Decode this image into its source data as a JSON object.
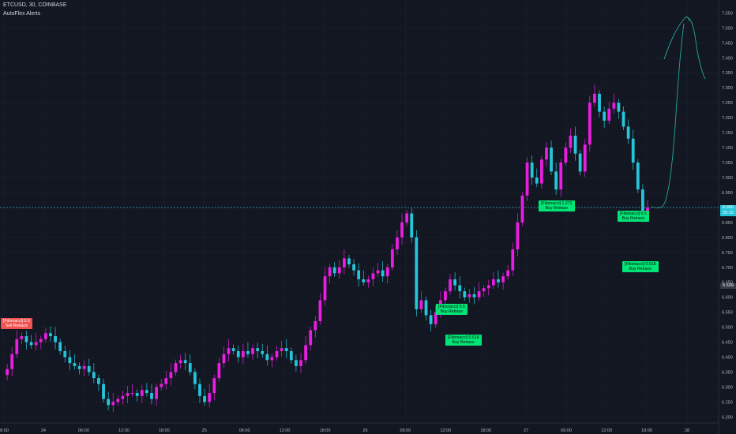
{
  "header": {
    "symbol_line": "ETCUSD, 30, COINBASE",
    "indicator_name": "AutoFlex Alerts"
  },
  "colors": {
    "background": "#131722",
    "grid": "#1c2030",
    "up_candle": "#e91ee0",
    "down_candle": "#26c6da",
    "buy_label": "#00e676",
    "sell_label": "#ef5350",
    "drawing": "#26a69a",
    "axis_text": "#b2b5be"
  },
  "price_axis": {
    "labels": [
      "7.550",
      "7.500",
      "7.450",
      "7.400",
      "7.350",
      "7.300",
      "7.250",
      "7.200",
      "7.150",
      "7.100",
      "7.050",
      "7.000",
      "6.950",
      "6.900",
      "6.850",
      "6.800",
      "6.750",
      "6.700",
      "6.650",
      "6.600",
      "6.550",
      "6.500",
      "6.450",
      "6.400",
      "6.350",
      "6.300",
      "6.250",
      "6.200"
    ],
    "current_price": "6.900",
    "countdown": "25:15",
    "marker_price": "6.639"
  },
  "time_axis": {
    "labels": [
      "18:00",
      "24",
      "06:00",
      "12:00",
      "18:00",
      "25",
      "06:00",
      "12:00",
      "18:00",
      "26",
      "06:00",
      "12:00",
      "18:00",
      "27",
      "06:00",
      "12:00",
      "18:00",
      "28"
    ]
  },
  "signals": [
    {
      "line1": "[Fibonacci] 0.0",
      "line2": "Sell Retrace",
      "type": "sell"
    },
    {
      "line1": "[Fibonacci] 0.5",
      "line2": "Buy Retrace",
      "type": "buy"
    },
    {
      "line1": "[Fibonacci] 0.618",
      "line2": "Buy Retrace",
      "type": "buy"
    },
    {
      "line1": "[Fibonacci] 1.272",
      "line2": "Buy Retrace",
      "type": "buy"
    },
    {
      "line1": "[Fibonacci] 0.5",
      "line2": "Buy Retrace",
      "type": "buy"
    },
    {
      "line1": "[Fibonacci] 0.618",
      "line2": "Buy Retrace",
      "type": "buy"
    }
  ],
  "chart_data": {
    "type": "candlestick",
    "symbol": "ETCUSD",
    "interval_minutes": 30,
    "ylim": [
      6.18,
      7.58
    ],
    "closes": [
      6.34,
      6.36,
      6.41,
      6.46,
      6.47,
      6.45,
      6.44,
      6.45,
      6.46,
      6.48,
      6.47,
      6.45,
      6.42,
      6.4,
      6.38,
      6.37,
      6.36,
      6.37,
      6.35,
      6.33,
      6.31,
      6.26,
      6.24,
      6.25,
      6.26,
      6.27,
      6.28,
      6.28,
      6.27,
      6.29,
      6.28,
      6.26,
      6.3,
      6.31,
      6.33,
      6.35,
      6.38,
      6.39,
      6.38,
      6.35,
      6.31,
      6.27,
      6.25,
      6.28,
      6.33,
      6.38,
      6.41,
      6.43,
      6.42,
      6.4,
      6.42,
      6.41,
      6.43,
      6.42,
      6.41,
      6.39,
      6.4,
      6.42,
      6.43,
      6.42,
      6.39,
      6.37,
      6.39,
      6.44,
      6.49,
      6.52,
      6.59,
      6.67,
      6.7,
      6.68,
      6.7,
      6.73,
      6.71,
      6.69,
      6.66,
      6.65,
      6.66,
      6.68,
      6.69,
      6.67,
      6.7,
      6.76,
      6.8,
      6.85,
      6.88,
      6.8,
      6.56,
      6.59,
      6.54,
      6.51,
      6.55,
      6.59,
      6.62,
      6.66,
      6.64,
      6.62,
      6.6,
      6.61,
      6.6,
      6.62,
      6.63,
      6.64,
      6.66,
      6.65,
      6.67,
      6.69,
      6.76,
      6.85,
      6.94,
      7.05,
      7.0,
      6.98,
      7.06,
      7.1,
      7.02,
      6.96,
      7.05,
      7.1,
      7.14,
      7.08,
      7.02,
      7.11,
      7.25,
      7.28,
      7.22,
      7.19,
      7.23,
      7.25,
      7.22,
      7.17,
      7.13,
      7.05,
      6.96,
      6.88,
      6.9
    ]
  }
}
